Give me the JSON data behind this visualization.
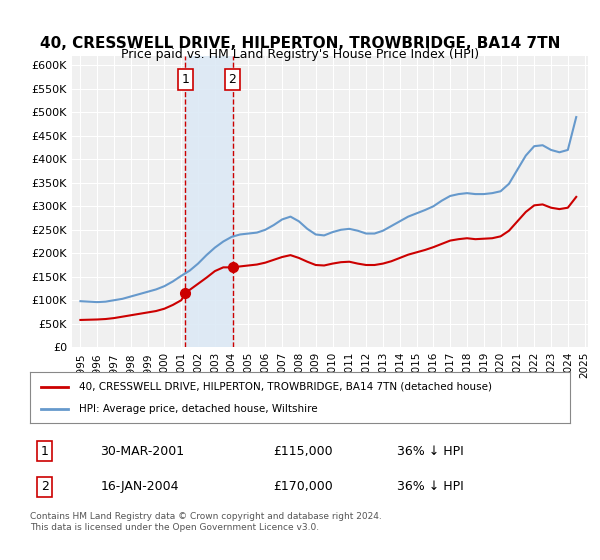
{
  "title": "40, CRESSWELL DRIVE, HILPERTON, TROWBRIDGE, BA14 7TN",
  "subtitle": "Price paid vs. HM Land Registry's House Price Index (HPI)",
  "legend_label_red": "40, CRESSWELL DRIVE, HILPERTON, TROWBRIDGE, BA14 7TN (detached house)",
  "legend_label_blue": "HPI: Average price, detached house, Wiltshire",
  "footnote": "Contains HM Land Registry data © Crown copyright and database right 2024.\nThis data is licensed under the Open Government Licence v3.0.",
  "transaction1_label": "1",
  "transaction1_date": "30-MAR-2001",
  "transaction1_price": "£115,000",
  "transaction1_hpi": "36% ↓ HPI",
  "transaction2_label": "2",
  "transaction2_date": "16-JAN-2004",
  "transaction2_price": "£170,000",
  "transaction2_hpi": "36% ↓ HPI",
  "bg_color": "#ffffff",
  "plot_bg_color": "#f0f0f0",
  "red_color": "#cc0000",
  "blue_color": "#6699cc",
  "shade_color": "#dce9f5",
  "shade_alpha": 0.5,
  "marker1_x": 2001.25,
  "marker2_x": 2004.05,
  "marker1_y": 115000,
  "marker2_y": 170000,
  "vline1_x": 2001.25,
  "vline2_x": 2004.05,
  "hpi_x": [
    1995,
    1995.5,
    1996,
    1996.5,
    1997,
    1997.5,
    1998,
    1998.5,
    1999,
    1999.5,
    2000,
    2000.5,
    2001,
    2001.5,
    2002,
    2002.5,
    2003,
    2003.5,
    2004,
    2004.5,
    2005,
    2005.5,
    2006,
    2006.5,
    2007,
    2007.5,
    2008,
    2008.5,
    2009,
    2009.5,
    2010,
    2010.5,
    2011,
    2011.5,
    2012,
    2012.5,
    2013,
    2013.5,
    2014,
    2014.5,
    2015,
    2015.5,
    2016,
    2016.5,
    2017,
    2017.5,
    2018,
    2018.5,
    2019,
    2019.5,
    2020,
    2020.5,
    2021,
    2021.5,
    2022,
    2022.5,
    2023,
    2023.5,
    2024,
    2024.5
  ],
  "hpi_y": [
    98000,
    97000,
    96000,
    97000,
    100000,
    103000,
    108000,
    113000,
    118000,
    123000,
    130000,
    140000,
    152000,
    163000,
    178000,
    196000,
    212000,
    225000,
    235000,
    240000,
    242000,
    244000,
    250000,
    260000,
    272000,
    278000,
    268000,
    252000,
    240000,
    238000,
    245000,
    250000,
    252000,
    248000,
    242000,
    242000,
    248000,
    258000,
    268000,
    278000,
    285000,
    292000,
    300000,
    312000,
    322000,
    326000,
    328000,
    326000,
    326000,
    328000,
    332000,
    348000,
    378000,
    408000,
    428000,
    430000,
    420000,
    415000,
    420000,
    490000
  ],
  "price_x": [
    1995,
    1995.5,
    1996,
    1996.5,
    1997,
    1997.5,
    1998,
    1998.5,
    1999,
    1999.5,
    2000,
    2000.5,
    2001,
    2001.25,
    2001.5,
    2002,
    2002.5,
    2003,
    2003.5,
    2004,
    2004.05,
    2004.5,
    2005,
    2005.5,
    2006,
    2006.5,
    2007,
    2007.5,
    2008,
    2008.5,
    2009,
    2009.5,
    2010,
    2010.5,
    2011,
    2011.5,
    2012,
    2012.5,
    2013,
    2013.5,
    2014,
    2014.5,
    2015,
    2015.5,
    2016,
    2016.5,
    2017,
    2017.5,
    2018,
    2018.5,
    2019,
    2019.5,
    2020,
    2020.5,
    2021,
    2021.5,
    2022,
    2022.5,
    2023,
    2023.5,
    2024,
    2024.5
  ],
  "price_y": [
    58000,
    58500,
    59000,
    60000,
    62000,
    65000,
    68000,
    71000,
    74000,
    77000,
    82000,
    90000,
    100000,
    115000,
    122000,
    135000,
    148000,
    162000,
    170000,
    170000,
    170000,
    172000,
    174000,
    176000,
    180000,
    186000,
    192000,
    196000,
    190000,
    182000,
    175000,
    174000,
    178000,
    181000,
    182000,
    178000,
    175000,
    175000,
    178000,
    183000,
    190000,
    197000,
    202000,
    207000,
    213000,
    220000,
    227000,
    230000,
    232000,
    230000,
    231000,
    232000,
    236000,
    248000,
    268000,
    288000,
    302000,
    304000,
    297000,
    294000,
    297000,
    320000
  ],
  "ylim": [
    0,
    620000
  ],
  "xlim": [
    1994.5,
    2025.2
  ],
  "yticks": [
    0,
    50000,
    100000,
    150000,
    200000,
    250000,
    300000,
    350000,
    400000,
    450000,
    500000,
    550000,
    600000
  ],
  "ytick_labels": [
    "£0",
    "£50K",
    "£100K",
    "£150K",
    "£200K",
    "£250K",
    "£300K",
    "£350K",
    "£400K",
    "£450K",
    "£500K",
    "£550K",
    "£600K"
  ],
  "xticks": [
    1995,
    1996,
    1997,
    1998,
    1999,
    2000,
    2001,
    2002,
    2003,
    2004,
    2005,
    2006,
    2007,
    2008,
    2009,
    2010,
    2011,
    2012,
    2013,
    2014,
    2015,
    2016,
    2017,
    2018,
    2019,
    2020,
    2021,
    2022,
    2023,
    2024,
    2025
  ]
}
